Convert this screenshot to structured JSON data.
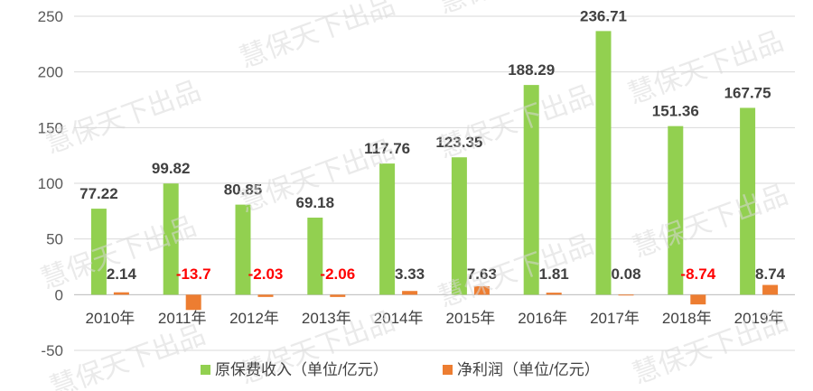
{
  "chart_data": {
    "type": "bar",
    "categories": [
      "2010年",
      "2011年",
      "2012年",
      "2013年",
      "2014年",
      "2015年",
      "2016年",
      "2017年",
      "2018年",
      "2019年"
    ],
    "series": [
      {
        "name": "原保费收入（单位/亿元）",
        "color": "#92d050",
        "values": [
          77.22,
          99.82,
          80.85,
          69.18,
          117.76,
          123.35,
          188.29,
          236.71,
          151.36,
          167.75
        ],
        "labels": [
          "77.22",
          "99.82",
          "80.85",
          "69.18",
          "117.76",
          "123.35",
          "188.29",
          "236.71",
          "151.36",
          "167.75"
        ]
      },
      {
        "name": "净利润（单位/亿元）",
        "color": "#ed7d31",
        "values": [
          2.14,
          -13.7,
          -2.03,
          -2.06,
          3.33,
          7.63,
          1.81,
          0.08,
          -8.74,
          8.74
        ],
        "labels": [
          "2.14",
          "-13.7",
          "-2.03",
          "-2.06",
          "3.33",
          "7.63",
          "1.81",
          "0.08",
          "-8.74",
          "8.74"
        ]
      }
    ],
    "yticks": [
      "250",
      "200",
      "150",
      "100",
      "50",
      "0",
      "-50"
    ],
    "ylim": [
      -50,
      250
    ],
    "grid": true,
    "legend": "bottom",
    "label_colors": {
      "positive": "#404040",
      "negative": "#ff0000"
    }
  },
  "watermark": "慧保天下出品"
}
